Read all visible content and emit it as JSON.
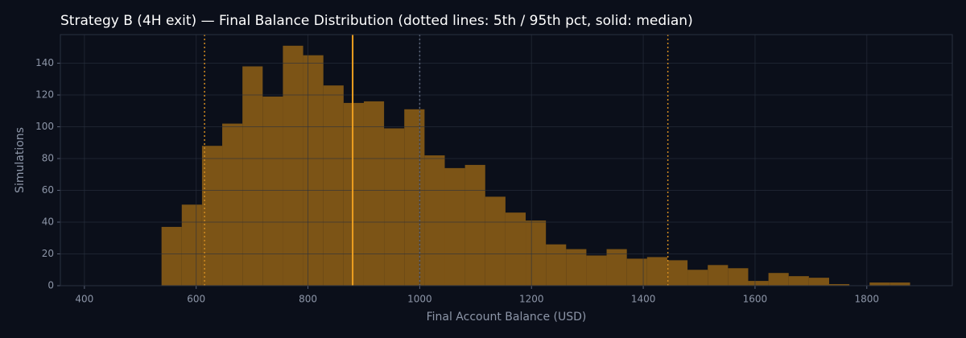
{
  "chart_data": {
    "type": "histogram",
    "title": "Strategy B (4H exit) — Final Balance Distribution (dotted lines: 5th / 95th pct, solid: median)",
    "x_label": "Final Account Balance (USD)",
    "y_label": "Simulations",
    "bins": [
      538.0,
      574.2,
      610.4,
      646.6,
      682.8,
      719.0,
      755.2,
      791.4,
      827.6,
      863.8,
      900.0,
      936.2,
      972.4,
      1008.6,
      1044.8,
      1081.0,
      1117.2,
      1153.4,
      1189.6,
      1225.8,
      1262.0,
      1298.2,
      1334.4,
      1370.6,
      1406.8,
      1443.0,
      1479.2,
      1515.4,
      1551.6,
      1587.8,
      1624.0,
      1660.2,
      1696.4,
      1732.6,
      1768.8,
      1805.0,
      1841.2,
      1877.4
    ],
    "values": [
      37,
      51,
      88,
      102,
      138,
      119,
      151,
      145,
      126,
      115,
      116,
      99,
      111,
      82,
      74,
      76,
      56,
      46,
      41,
      26,
      23,
      19,
      23,
      17,
      18,
      16,
      10,
      13,
      11,
      3,
      8,
      6,
      5,
      1,
      0,
      2,
      2
    ],
    "color": "#7c5416",
    "vlines": [
      {
        "value": 615,
        "style": "dotted",
        "color": "#d08a20"
      },
      {
        "value": 880,
        "style": "solid",
        "color": "#f0a020"
      },
      {
        "value": 1444,
        "style": "dotted",
        "color": "#d08a20"
      },
      {
        "value": 1000,
        "style": "dotted",
        "color": "#5a6378"
      }
    ],
    "xlim": [
      357,
      1953
    ],
    "xticks": [
      400,
      600,
      800,
      1000,
      1200,
      1400,
      1600,
      1800
    ],
    "ylim": [
      0,
      158
    ],
    "yticks": [
      0,
      20,
      40,
      60,
      80,
      100,
      120,
      140
    ],
    "grid": true
  }
}
